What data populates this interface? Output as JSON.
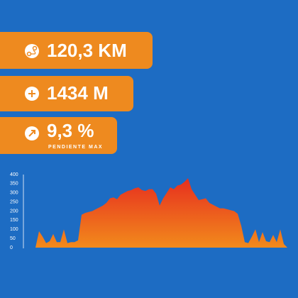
{
  "banners": [
    {
      "value": "120,3 KM"
    },
    {
      "value": "1434 M"
    },
    {
      "value": "9,3 %",
      "caption": "PENDIENTE MAX"
    }
  ],
  "chart_data": {
    "type": "area",
    "values": [
      0,
      90,
      60,
      25,
      35,
      75,
      30,
      30,
      100,
      25,
      30,
      30,
      40,
      180,
      190,
      195,
      200,
      210,
      220,
      230,
      245,
      270,
      275,
      265,
      290,
      300,
      310,
      315,
      325,
      330,
      315,
      310,
      320,
      320,
      295,
      230,
      270,
      300,
      330,
      320,
      340,
      345,
      360,
      380,
      320,
      290,
      260,
      265,
      270,
      245,
      235,
      225,
      215,
      215,
      210,
      205,
      200,
      185,
      120,
      30,
      25,
      60,
      100,
      30,
      85,
      35,
      30,
      70,
      30,
      100,
      20,
      0
    ],
    "ylim": [
      0,
      400
    ],
    "yticks": [
      0,
      50,
      100,
      150,
      200,
      250,
      300,
      350,
      400
    ],
    "color_top": "#e62a1f",
    "color_bottom": "#f28a1c"
  }
}
